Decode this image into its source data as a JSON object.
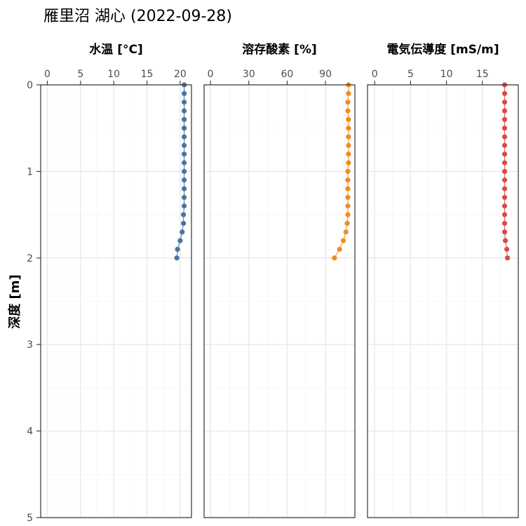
{
  "chart_data": {
    "type": "scatter",
    "title": "雁里沼 湖心 (2022-09-28)",
    "ylabel": "深度 [m]",
    "ylim": [
      0,
      5
    ],
    "y_ticks": [
      "0",
      "1",
      "2",
      "3",
      "4",
      "5"
    ],
    "y_inverted": true,
    "grid": true,
    "depth": [
      0,
      0.1,
      0.2,
      0.3,
      0.4,
      0.5,
      0.6,
      0.7,
      0.8,
      0.9,
      1.0,
      1.1,
      1.2,
      1.3,
      1.4,
      1.5,
      1.6,
      1.7,
      1.8,
      1.9,
      2.0
    ],
    "panels": [
      {
        "name": "水温 [°C]",
        "color": "#4a74a3",
        "xlim": [
          -1,
          21.7
        ],
        "x_ticks": [
          0,
          5,
          10,
          15,
          20
        ],
        "x_tick_labels": [
          "0",
          "5",
          "10",
          "15",
          "20"
        ],
        "values": [
          20.6,
          20.6,
          20.6,
          20.6,
          20.6,
          20.6,
          20.6,
          20.6,
          20.6,
          20.6,
          20.6,
          20.6,
          20.6,
          20.6,
          20.6,
          20.5,
          20.5,
          20.3,
          20.0,
          19.6,
          19.5
        ]
      },
      {
        "name": "溶存酸素 [%]",
        "color": "#f08c1e",
        "xlim": [
          -5,
          113
        ],
        "x_ticks": [
          0,
          30,
          60,
          90
        ],
        "x_tick_labels": [
          "0",
          "30",
          "60",
          "90"
        ],
        "values": [
          108,
          108,
          107.5,
          107.5,
          108,
          108,
          108,
          108,
          108,
          108,
          107.5,
          107.5,
          107.5,
          107.5,
          107.5,
          107.5,
          107,
          106,
          104,
          101,
          97
        ]
      },
      {
        "name": "電気伝導度 [mS/m]",
        "color": "#d94a4a",
        "xlim": [
          -1,
          20
        ],
        "x_ticks": [
          0,
          5,
          10,
          15
        ],
        "x_tick_labels": [
          "0",
          "5",
          "10",
          "15"
        ],
        "values": [
          18.1,
          18.1,
          18.1,
          18.1,
          18.1,
          18.1,
          18.1,
          18.1,
          18.1,
          18.1,
          18.1,
          18.1,
          18.1,
          18.1,
          18.1,
          18.1,
          18.1,
          18.1,
          18.2,
          18.4,
          18.5
        ]
      }
    ]
  }
}
